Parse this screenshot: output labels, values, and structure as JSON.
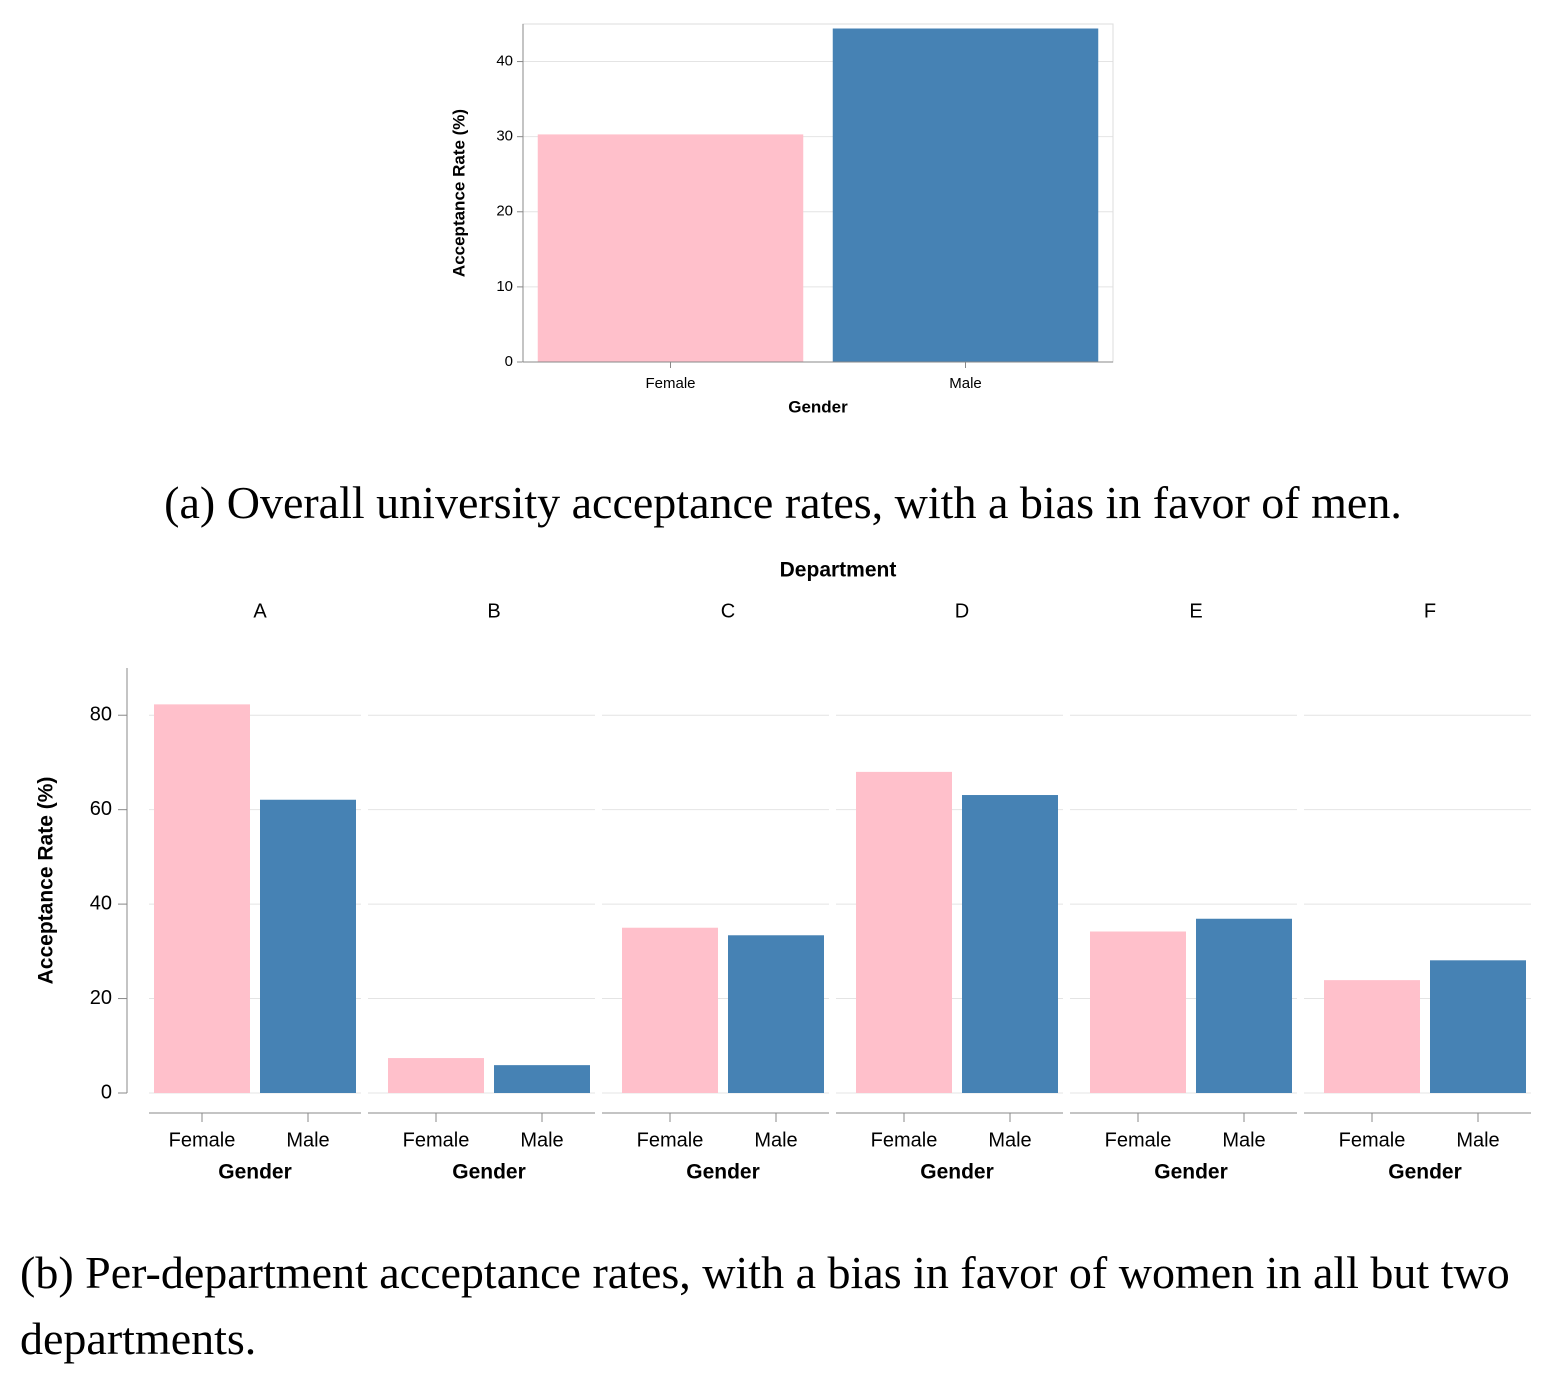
{
  "chart_data": [
    {
      "type": "bar",
      "categories": [
        "Female",
        "Male"
      ],
      "values": [
        30.3,
        44.4
      ],
      "colors": [
        "#ffc0cb",
        "#4682b4"
      ],
      "ylim": [
        0,
        45
      ],
      "yticks": [
        0,
        10,
        20,
        30,
        40
      ],
      "grid": true,
      "y_label": "Acceptance Rate  (%)",
      "x_label": "Gender",
      "caption": "(a) Overall university acceptance rates, with a bias in favor of men."
    },
    {
      "type": "facet_bar",
      "facet_title": "Department",
      "categories": [
        "Female",
        "Male"
      ],
      "colors": [
        "#ffc0cb",
        "#4682b4"
      ],
      "facets": [
        {
          "name": "A",
          "values": [
            82.3,
            62.1
          ]
        },
        {
          "name": "B",
          "values": [
            7.4,
            5.9
          ]
        },
        {
          "name": "C",
          "values": [
            35.0,
            33.4
          ]
        },
        {
          "name": "D",
          "values": [
            68.0,
            63.1
          ]
        },
        {
          "name": "E",
          "values": [
            34.2,
            36.9
          ]
        },
        {
          "name": "F",
          "values": [
            23.9,
            28.1
          ]
        }
      ],
      "ylim": [
        0,
        90
      ],
      "yticks": [
        0,
        20,
        40,
        60,
        80
      ],
      "grid": true,
      "y_label": "Acceptance Rate  (%)",
      "x_label": "Gender",
      "caption": "(b) Per-department acceptance rates, with a bias in favor of women in all but two departments."
    }
  ]
}
